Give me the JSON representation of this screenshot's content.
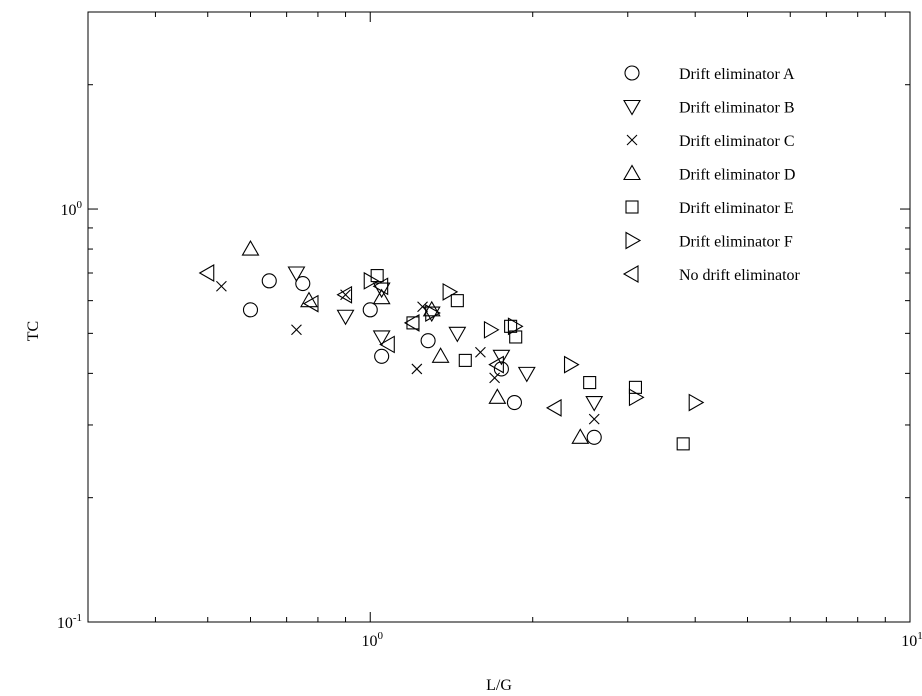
{
  "chart_data": {
    "type": "scatter",
    "xlabel": "L/G",
    "ylabel": "TC",
    "xscale": "log",
    "yscale": "log",
    "xlim": [
      0.3,
      10
    ],
    "ylim": [
      0.1,
      3
    ],
    "x_tick_labels": [
      {
        "value": 1,
        "base": "10",
        "exp": "0"
      },
      {
        "value": 10,
        "base": "10",
        "exp": "1"
      }
    ],
    "y_tick_labels": [
      {
        "value": 0.1,
        "base": "10",
        "exp": "-1"
      },
      {
        "value": 1,
        "base": "10",
        "exp": "0"
      }
    ],
    "legend_position": "top-right",
    "grid": false,
    "series": [
      {
        "name": "Drift eliminator A",
        "marker": "circle",
        "points": [
          [
            0.6,
            0.57
          ],
          [
            0.65,
            0.67
          ],
          [
            0.75,
            0.66
          ],
          [
            1.0,
            0.57
          ],
          [
            1.05,
            0.44
          ],
          [
            1.28,
            0.48
          ],
          [
            1.75,
            0.41
          ],
          [
            1.85,
            0.34
          ],
          [
            2.6,
            0.28
          ]
        ]
      },
      {
        "name": "Drift eliminator B",
        "marker": "triangle-down",
        "points": [
          [
            0.73,
            0.7
          ],
          [
            0.9,
            0.55
          ],
          [
            1.05,
            0.64
          ],
          [
            1.05,
            0.49
          ],
          [
            1.3,
            0.56
          ],
          [
            1.45,
            0.5
          ],
          [
            1.75,
            0.44
          ],
          [
            1.95,
            0.4
          ],
          [
            2.6,
            0.34
          ]
        ]
      },
      {
        "name": "Drift eliminator C",
        "marker": "x",
        "points": [
          [
            0.53,
            0.65
          ],
          [
            0.73,
            0.51
          ],
          [
            0.9,
            0.62
          ],
          [
            1.22,
            0.41
          ],
          [
            1.25,
            0.58
          ],
          [
            1.6,
            0.45
          ],
          [
            1.7,
            0.39
          ],
          [
            2.6,
            0.31
          ]
        ]
      },
      {
        "name": "Drift eliminator D",
        "marker": "triangle-up",
        "points": [
          [
            0.6,
            0.8
          ],
          [
            0.77,
            0.6
          ],
          [
            1.05,
            0.61
          ],
          [
            1.3,
            0.57
          ],
          [
            1.35,
            0.44
          ],
          [
            1.72,
            0.35
          ],
          [
            2.45,
            0.28
          ]
        ]
      },
      {
        "name": "Drift eliminator E",
        "marker": "square",
        "points": [
          [
            1.03,
            0.69
          ],
          [
            1.2,
            0.53
          ],
          [
            1.45,
            0.6
          ],
          [
            1.5,
            0.43
          ],
          [
            1.82,
            0.52
          ],
          [
            1.86,
            0.49
          ],
          [
            2.55,
            0.38
          ],
          [
            3.1,
            0.37
          ],
          [
            3.8,
            0.27
          ]
        ]
      },
      {
        "name": "Drift eliminator F",
        "marker": "triangle-right",
        "points": [
          [
            1.0,
            0.67
          ],
          [
            1.3,
            0.56
          ],
          [
            1.4,
            0.63
          ],
          [
            1.67,
            0.51
          ],
          [
            1.85,
            0.52
          ],
          [
            2.35,
            0.42
          ],
          [
            3.1,
            0.35
          ],
          [
            4.0,
            0.34
          ]
        ]
      },
      {
        "name": "No drift eliminator",
        "marker": "triangle-left",
        "points": [
          [
            0.5,
            0.7
          ],
          [
            0.78,
            0.59
          ],
          [
            0.9,
            0.62
          ],
          [
            1.05,
            0.65
          ],
          [
            1.08,
            0.47
          ],
          [
            1.2,
            0.53
          ],
          [
            1.72,
            0.42
          ],
          [
            2.2,
            0.33
          ]
        ]
      }
    ]
  }
}
